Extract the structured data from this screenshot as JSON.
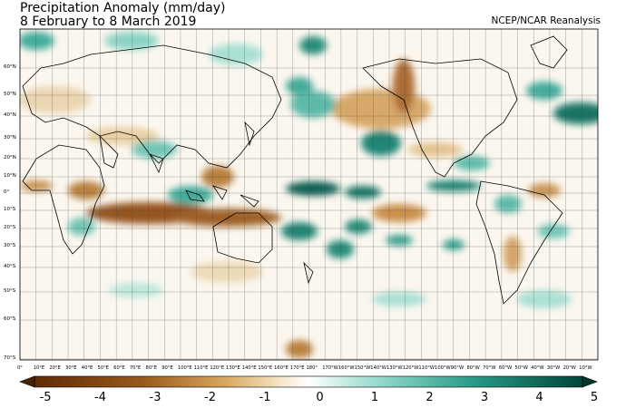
{
  "title": "Precipitation Anomaly (mm/day)",
  "subtitle": "8 February to 8 March 2019",
  "credit": "NCEP/NCAR Reanalysis",
  "latitude_labels": [
    "60°N",
    "50°N",
    "40°N",
    "30°N",
    "20°N",
    "10°N",
    "0°",
    "10°S",
    "20°S",
    "30°S",
    "40°S",
    "50°S",
    "60°S",
    "70°S"
  ],
  "longitude_labels": [
    "0°",
    "10°E",
    "20°E",
    "30°E",
    "40°E",
    "50°E",
    "60°E",
    "70°E",
    "80°E",
    "90°E",
    "100°E",
    "110°E",
    "120°E",
    "130°E",
    "140°E",
    "150°E",
    "160°E",
    "170°E",
    "180°",
    "170°W",
    "160°W",
    "150°W",
    "140°W",
    "130°W",
    "120°W",
    "110°W",
    "100°W",
    "90°W",
    "80°W",
    "70°W",
    "60°W",
    "50°W",
    "40°W",
    "30°W",
    "20°W",
    "10°W"
  ],
  "colorbar": {
    "ticks": [
      "-5",
      "-4",
      "-3",
      "-2",
      "-1",
      "0",
      "1",
      "2",
      "3",
      "4",
      "5"
    ],
    "min": -5,
    "max": 5,
    "colors": {
      "dry": "#7a3d0a",
      "neutral": "#ffffff",
      "wet": "#00594c"
    }
  }
}
